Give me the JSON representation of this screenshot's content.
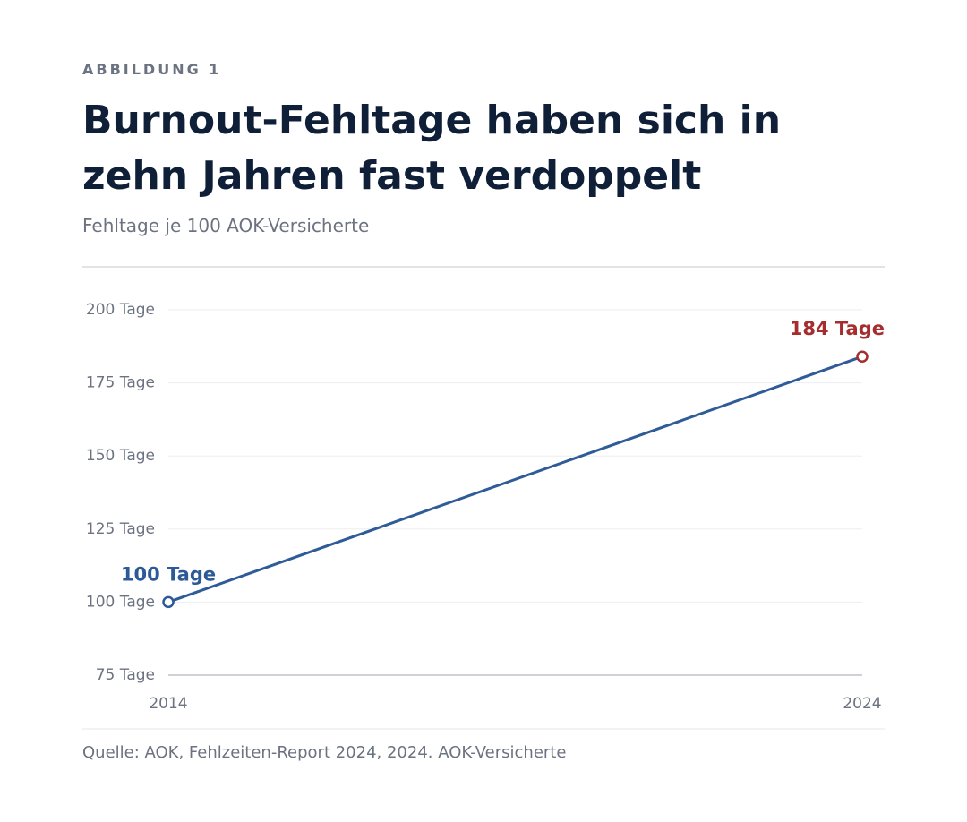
{
  "chart_data": {
    "type": "line",
    "kicker": "ABBILDUNG 1",
    "title": "Burnout-Fehltage haben sich in zehn Jahren fast verdoppelt",
    "subtitle": "Fehltage je 100 AOK-Versicherte",
    "source": "Quelle: AOK, Fehlzeiten-Report 2024, 2024. AOK-Versicherte",
    "x": [
      2014,
      2024
    ],
    "values": [
      100,
      184
    ],
    "value_labels": [
      "100 Tage",
      "184 Tage"
    ],
    "color": "#2f5b97",
    "point_colors": [
      "#2c5a96",
      "#a52d2d"
    ],
    "xlim": [
      2014,
      2024
    ],
    "xticks": [
      2014,
      2024
    ],
    "ylim": [
      75,
      200
    ],
    "yticks": [
      {
        "value": 75,
        "label": "75 Tage"
      },
      {
        "value": 100,
        "label": "100 Tage"
      },
      {
        "value": 125,
        "label": "125 Tage"
      },
      {
        "value": 150,
        "label": "150 Tage"
      },
      {
        "value": 175,
        "label": "175 Tage"
      },
      {
        "value": 200,
        "label": "200 Tage"
      }
    ],
    "grid": true
  }
}
